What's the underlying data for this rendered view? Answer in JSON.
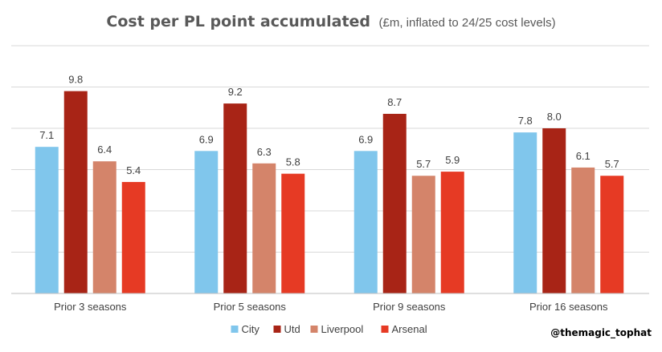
{
  "colors": {
    "City": "#80C6EC",
    "Utd": "#A82416",
    "Liverpool": "#D4846A",
    "Arsenal": "#E63A24",
    "grid": "#D9D9D9",
    "axis": "#BFBFBF",
    "text": "#404040",
    "title": "#595959"
  },
  "credit": "@themagic_tophat",
  "chart_data": {
    "type": "bar",
    "title": "Cost per PL point accumulated",
    "subtitle": "(£m, inflated to 24/25 cost levels)",
    "xlabel": "",
    "ylabel": "",
    "ylim": [
      0,
      12
    ],
    "grid": true,
    "legend_position": "bottom",
    "categories": [
      "Prior 3 seasons",
      "Prior 5 seasons",
      "Prior 9 seasons",
      "Prior 16 seasons"
    ],
    "series": [
      {
        "name": "City",
        "values": [
          7.1,
          6.9,
          6.9,
          7.8
        ],
        "labels": [
          "7.1",
          "6.9",
          "6.9",
          "7.8"
        ]
      },
      {
        "name": "Utd",
        "values": [
          9.8,
          9.2,
          8.7,
          8.0
        ],
        "labels": [
          "9.8",
          "9.2",
          "8.7",
          "8.0"
        ]
      },
      {
        "name": "Liverpool",
        "values": [
          6.4,
          6.3,
          5.7,
          6.1
        ],
        "labels": [
          "6.4",
          "6.3",
          "5.7",
          "6.1"
        ]
      },
      {
        "name": "Arsenal",
        "values": [
          5.4,
          5.8,
          5.9,
          5.7
        ],
        "labels": [
          "5.4",
          "5.8",
          "5.9",
          "5.7"
        ]
      }
    ]
  }
}
